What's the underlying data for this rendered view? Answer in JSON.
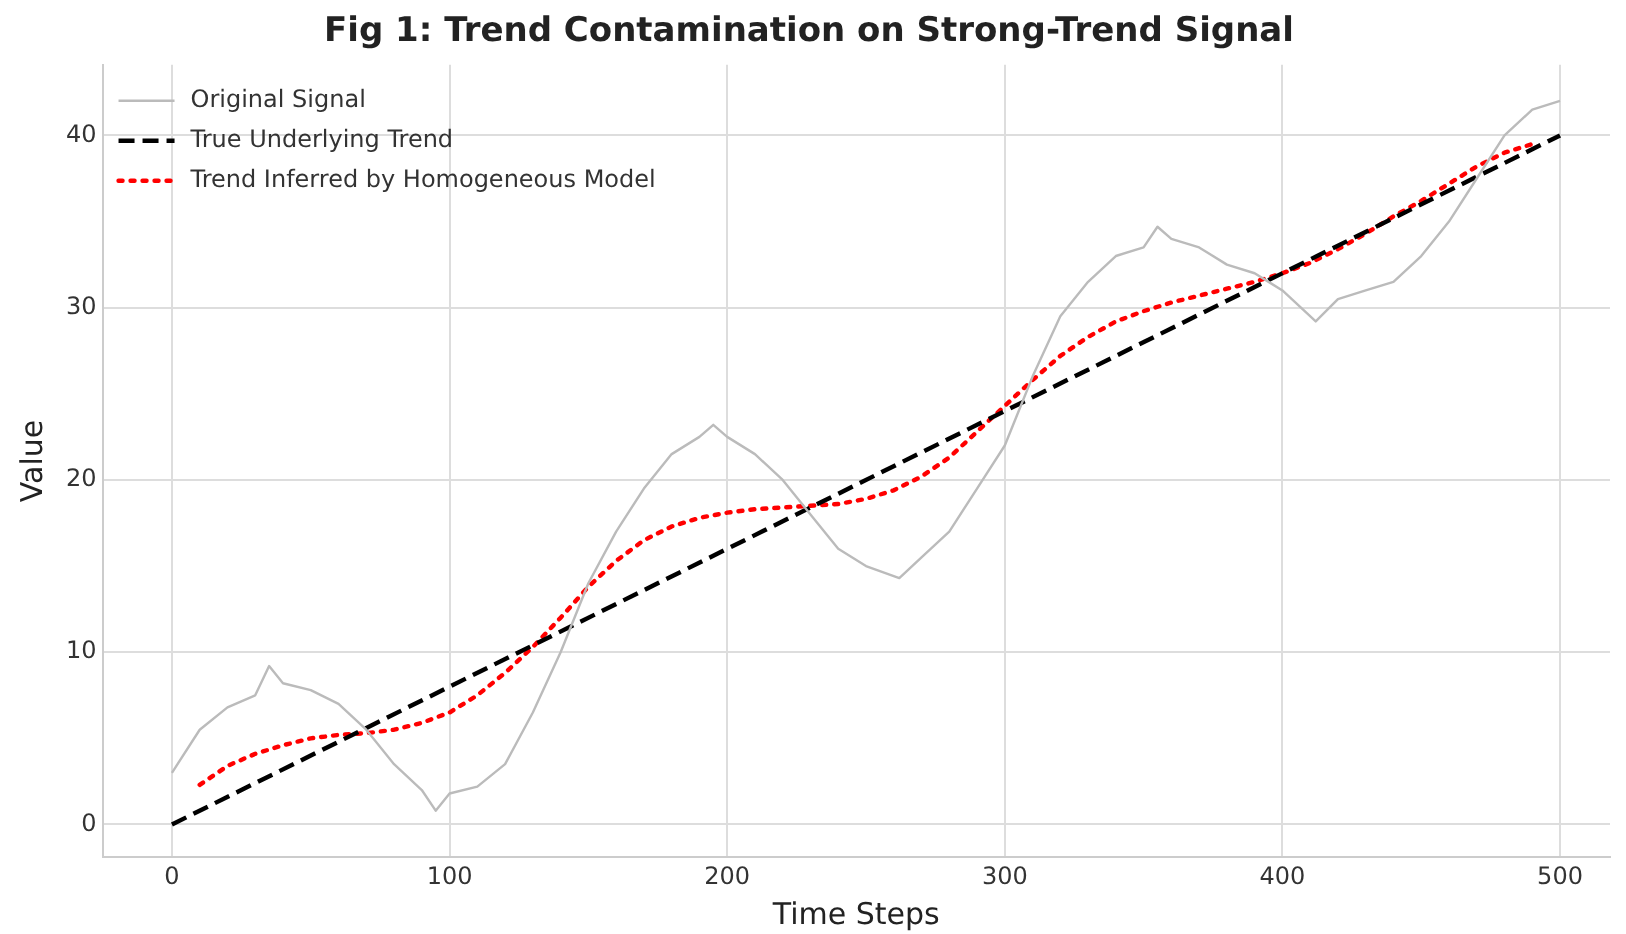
{
  "chart_data": {
    "type": "line",
    "title": "Fig 1: Trend Contamination on Strong-Trend Signal",
    "xlabel": "Time Steps",
    "ylabel": "Value",
    "xlim": [
      -25,
      518
    ],
    "ylim": [
      -1.9,
      44.1
    ],
    "xticks": [
      0,
      100,
      200,
      300,
      400,
      500
    ],
    "yticks": [
      0,
      10,
      20,
      30,
      40
    ],
    "grid": true,
    "legend": "top left",
    "marker": "none",
    "series": [
      {
        "name": "Original Signal",
        "color": "#bbbbbb",
        "line_style": "solid",
        "x": [
          0,
          10,
          20,
          30,
          35,
          40,
          50,
          60,
          70,
          80,
          90,
          95,
          100,
          110,
          120,
          130,
          140,
          150,
          160,
          170,
          180,
          190,
          195,
          200,
          210,
          220,
          230,
          240,
          250,
          262,
          270,
          280,
          290,
          300,
          310,
          320,
          330,
          340,
          350,
          355,
          360,
          370,
          380,
          390,
          400,
          412,
          420,
          430,
          440,
          450,
          460,
          470,
          480,
          490,
          500
        ],
        "values": [
          3,
          5.5,
          6.8,
          7.5,
          9.2,
          8.2,
          7.8,
          7,
          5.5,
          3.5,
          2,
          0.8,
          1.8,
          2.2,
          3.5,
          6.5,
          10,
          14,
          17,
          19.5,
          21.5,
          22.5,
          23.2,
          22.5,
          21.5,
          20,
          18,
          16,
          15,
          14.3,
          15.5,
          17,
          19.5,
          22,
          26,
          29.5,
          31.5,
          33,
          33.5,
          34.7,
          34,
          33.5,
          32.5,
          32,
          31,
          29.2,
          30.5,
          31,
          31.5,
          33,
          35,
          37.5,
          40,
          41.5,
          42
        ]
      },
      {
        "name": "True Underlying Trend",
        "color": "#000000",
        "line_style": "dashed",
        "x": [
          0,
          500
        ],
        "values": [
          0,
          40
        ]
      },
      {
        "name": "Trend Inferred by Homogeneous Model",
        "color": "#ff0000",
        "line_style": "dotted",
        "x": [
          10,
          20,
          30,
          40,
          50,
          60,
          70,
          80,
          90,
          100,
          110,
          120,
          130,
          140,
          150,
          160,
          170,
          180,
          190,
          200,
          210,
          220,
          230,
          240,
          250,
          260,
          270,
          280,
          290,
          300,
          310,
          320,
          330,
          340,
          350,
          360,
          370,
          380,
          390,
          400,
          410,
          420,
          430,
          440,
          450,
          460,
          470,
          480,
          490
        ],
        "values": [
          2.3,
          3.4,
          4.1,
          4.6,
          5,
          5.2,
          5.3,
          5.5,
          5.9,
          6.5,
          7.5,
          8.8,
          10.3,
          12,
          13.8,
          15.3,
          16.5,
          17.3,
          17.8,
          18.1,
          18.3,
          18.4,
          18.5,
          18.6,
          18.9,
          19.4,
          20.2,
          21.3,
          22.8,
          24.3,
          25.8,
          27.2,
          28.3,
          29.2,
          29.8,
          30.3,
          30.7,
          31.1,
          31.5,
          32,
          32.6,
          33.4,
          34.3,
          35.3,
          36.2,
          37.2,
          38.2,
          39,
          39.5
        ]
      }
    ]
  }
}
